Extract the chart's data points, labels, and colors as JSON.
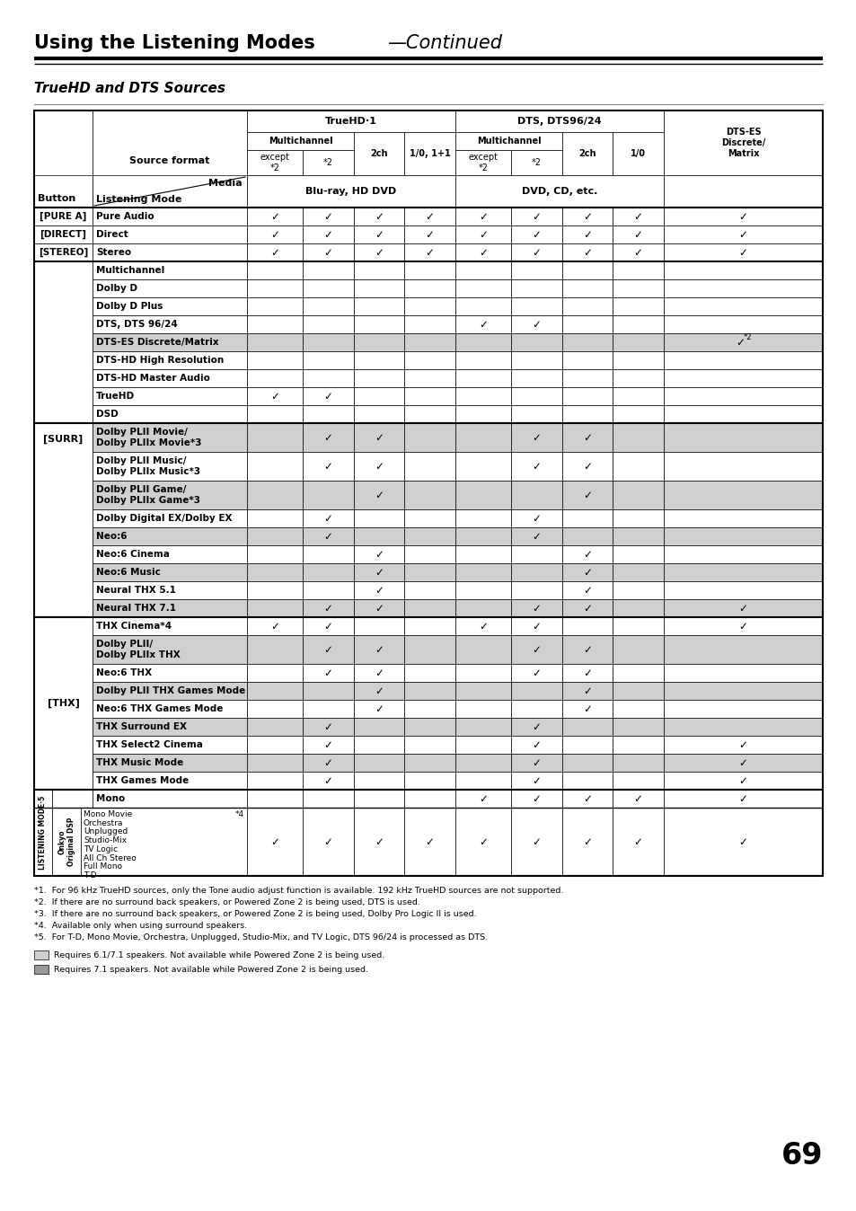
{
  "title_bold": "Using the Listening Modes",
  "title_italic": "—Continued",
  "subtitle": "TrueHD and DTS Sources",
  "footnotes": [
    "*1.  For 96 kHz TrueHD sources, only the Tone audio adjust function is available. 192 kHz TrueHD sources are not supported.",
    "*2.  If there are no surround back speakers, or Powered Zone 2 is being used, DTS is used.",
    "*3.  If there are no surround back speakers, or Powered Zone 2 is being used, Dolby Pro Logic II is used.",
    "*4.  Available only when using surround speakers.",
    "*5.  For T-D, Mono Movie, Orchestra, Unplugged, Studio-Mix, and TV Logic, DTS 96/24 is processed as DTS."
  ],
  "legend1": "Requires 6.1/7.1 speakers. Not available while Powered Zone 2 is being used.",
  "legend2": "Requires 7.1 speakers. Not available while Powered Zone 2 is being used.",
  "page_number": "69",
  "checks_data": [
    [
      1,
      1,
      1,
      1,
      1,
      1,
      1,
      1,
      1
    ],
    [
      1,
      1,
      1,
      1,
      1,
      1,
      1,
      1,
      1
    ],
    [
      1,
      1,
      1,
      1,
      1,
      1,
      1,
      1,
      1
    ],
    [
      0,
      0,
      0,
      0,
      0,
      0,
      0,
      0,
      0
    ],
    [
      0,
      0,
      0,
      0,
      0,
      0,
      0,
      0,
      0
    ],
    [
      0,
      0,
      0,
      0,
      0,
      0,
      0,
      0,
      0
    ],
    [
      0,
      0,
      0,
      0,
      1,
      1,
      0,
      0,
      0
    ],
    [
      0,
      0,
      0,
      0,
      0,
      0,
      0,
      0,
      2
    ],
    [
      0,
      0,
      0,
      0,
      0,
      0,
      0,
      0,
      0
    ],
    [
      0,
      0,
      0,
      0,
      0,
      0,
      0,
      0,
      0
    ],
    [
      1,
      1,
      0,
      0,
      0,
      0,
      0,
      0,
      0
    ],
    [
      0,
      0,
      0,
      0,
      0,
      0,
      0,
      0,
      0
    ],
    [
      0,
      1,
      1,
      0,
      0,
      1,
      1,
      0,
      0
    ],
    [
      0,
      1,
      1,
      0,
      0,
      1,
      1,
      0,
      0
    ],
    [
      0,
      0,
      1,
      0,
      0,
      0,
      1,
      0,
      0
    ],
    [
      0,
      1,
      0,
      0,
      0,
      1,
      0,
      0,
      0
    ],
    [
      0,
      1,
      0,
      0,
      0,
      1,
      0,
      0,
      0
    ],
    [
      0,
      0,
      1,
      0,
      0,
      0,
      1,
      0,
      0
    ],
    [
      0,
      0,
      1,
      0,
      0,
      0,
      1,
      0,
      0
    ],
    [
      0,
      0,
      1,
      0,
      0,
      0,
      1,
      0,
      0
    ],
    [
      0,
      1,
      1,
      0,
      0,
      1,
      1,
      0,
      1
    ],
    [
      1,
      1,
      0,
      0,
      1,
      1,
      0,
      0,
      1
    ],
    [
      0,
      1,
      1,
      0,
      0,
      1,
      1,
      0,
      0
    ],
    [
      0,
      1,
      1,
      0,
      0,
      1,
      1,
      0,
      0
    ],
    [
      0,
      0,
      1,
      0,
      0,
      0,
      1,
      0,
      0
    ],
    [
      0,
      0,
      1,
      0,
      0,
      0,
      1,
      0,
      0
    ],
    [
      0,
      1,
      0,
      0,
      0,
      1,
      0,
      0,
      0
    ],
    [
      0,
      1,
      0,
      0,
      0,
      1,
      0,
      0,
      1
    ],
    [
      0,
      1,
      0,
      0,
      0,
      1,
      0,
      0,
      1
    ],
    [
      0,
      1,
      0,
      0,
      0,
      1,
      0,
      0,
      1
    ],
    [
      0,
      0,
      0,
      0,
      1,
      1,
      1,
      1,
      1
    ],
    [
      1,
      1,
      1,
      1,
      1,
      1,
      1,
      1,
      1
    ]
  ],
  "data_modes": [
    [
      "Pure Audio",
      20,
      false
    ],
    [
      "Direct",
      20,
      false
    ],
    [
      "Stereo",
      20,
      false
    ],
    [
      "Multichannel",
      20,
      false
    ],
    [
      "Dolby D",
      20,
      false
    ],
    [
      "Dolby D Plus",
      20,
      false
    ],
    [
      "DTS, DTS 96/24",
      20,
      false
    ],
    [
      "DTS-ES Discrete/Matrix",
      20,
      true
    ],
    [
      "DTS-HD High Resolution",
      20,
      false
    ],
    [
      "DTS-HD Master Audio",
      20,
      false
    ],
    [
      "TrueHD",
      20,
      false
    ],
    [
      "DSD",
      20,
      false
    ],
    [
      "Dolby PLII Movie/\nDolby PLIIx Movie*3",
      32,
      true
    ],
    [
      "Dolby PLII Music/\nDolby PLIIx Music*3",
      32,
      false
    ],
    [
      "Dolby PLII Game/\nDolby PLIIx Game*3",
      32,
      true
    ],
    [
      "Dolby Digital EX/Dolby EX",
      20,
      false
    ],
    [
      "Neo:6",
      20,
      true
    ],
    [
      "Neo:6 Cinema",
      20,
      false
    ],
    [
      "Neo:6 Music",
      20,
      true
    ],
    [
      "Neural THX 5.1",
      20,
      false
    ],
    [
      "Neural THX 7.1",
      20,
      true
    ],
    [
      "THX Cinema*4",
      20,
      false
    ],
    [
      "Dolby PLII/\nDolby PLIIx THX",
      32,
      true
    ],
    [
      "Neo:6 THX",
      20,
      false
    ],
    [
      "Dolby PLII THX Games Mode",
      20,
      true
    ],
    [
      "Neo:6 THX Games Mode",
      20,
      false
    ],
    [
      "THX Surround EX",
      20,
      true
    ],
    [
      "THX Select2 Cinema",
      20,
      false
    ],
    [
      "THX Music Mode",
      20,
      true
    ],
    [
      "THX Games Mode",
      20,
      false
    ],
    [
      "Mono",
      20,
      false
    ],
    [
      "dsp_special",
      76,
      false
    ]
  ],
  "light_gray": "#d0d0d0",
  "mid_gray": "#999999",
  "table_border_color": "#000000"
}
